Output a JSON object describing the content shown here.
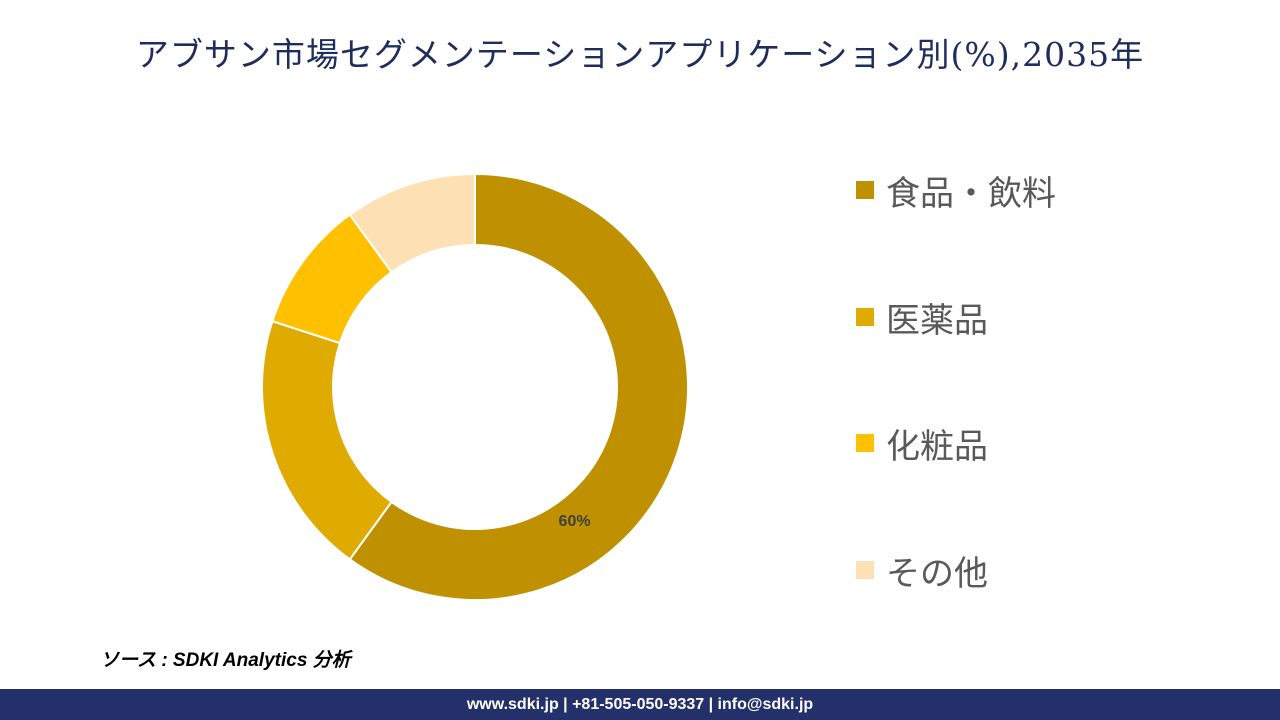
{
  "title": "アブサン市場セグメンテーションアプリケーション別(%),2035年",
  "chart_data": {
    "type": "pie",
    "donut": true,
    "categories": [
      "食品・飲料",
      "医薬品",
      "化粧品",
      "その他"
    ],
    "values": [
      60,
      20,
      10,
      10
    ],
    "colors": [
      "#bf9000",
      "#dfab00",
      "#ffc000",
      "#fde0b4"
    ],
    "data_labels": [
      "60%",
      "",
      "",
      ""
    ],
    "legend_position": "right"
  },
  "source_text": "ソース : SDKI Analytics 分析",
  "footer_text": "www.sdki.jp | +81-505-050-9337 | info@sdki.jp"
}
